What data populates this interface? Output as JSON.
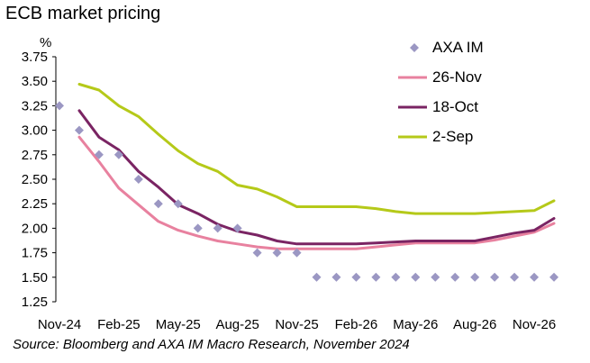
{
  "chart_data": {
    "type": "line",
    "title": "ECB market pricing",
    "ylabel": "%",
    "source": "Source: Bloomberg and AXA IM Macro Research, November 2024",
    "ylim": [
      1.25,
      3.75
    ],
    "yticks": [
      "3.75",
      "3.50",
      "3.25",
      "3.00",
      "2.75",
      "2.50",
      "2.25",
      "2.00",
      "1.75",
      "1.50",
      "1.25"
    ],
    "xlim": [
      0,
      25.5
    ],
    "xtick_labels": [
      {
        "label": "Nov-24",
        "x": 0
      },
      {
        "label": "Feb-25",
        "x": 3
      },
      {
        "label": "May-25",
        "x": 6
      },
      {
        "label": "Aug-25",
        "x": 9
      },
      {
        "label": "Nov-25",
        "x": 12
      },
      {
        "label": "Feb-26",
        "x": 15
      },
      {
        "label": "May-26",
        "x": 18
      },
      {
        "label": "Aug-26",
        "x": 21
      },
      {
        "label": "Nov-26",
        "x": 24
      }
    ],
    "legend_position": "top-right",
    "series": [
      {
        "name": "AXA IM",
        "kind": "scatter",
        "color": "#9b97c3",
        "x": [
          0,
          1,
          2,
          3,
          4,
          5,
          6,
          7,
          8,
          9,
          10,
          11,
          12,
          13,
          14,
          15,
          16,
          17,
          18,
          19,
          20,
          21,
          22,
          23,
          24,
          25
        ],
        "y": [
          3.25,
          3.0,
          2.75,
          2.75,
          2.5,
          2.25,
          2.25,
          2.0,
          2.0,
          2.0,
          1.75,
          1.75,
          1.75,
          1.5,
          1.5,
          1.5,
          1.5,
          1.5,
          1.5,
          1.5,
          1.5,
          1.5,
          1.5,
          1.5,
          1.5,
          1.5
        ]
      },
      {
        "name": "26-Nov",
        "kind": "line",
        "color": "#e8819f",
        "x": [
          1,
          2,
          3,
          4,
          5,
          6,
          7,
          8,
          9,
          10,
          11,
          12,
          13,
          14,
          15,
          16,
          17,
          18,
          19,
          20,
          21,
          22,
          23,
          24,
          25
        ],
        "y": [
          2.93,
          2.68,
          2.41,
          2.24,
          2.07,
          1.98,
          1.92,
          1.87,
          1.84,
          1.81,
          1.79,
          1.79,
          1.79,
          1.79,
          1.79,
          1.81,
          1.83,
          1.85,
          1.85,
          1.85,
          1.85,
          1.88,
          1.92,
          1.96,
          2.05
        ]
      },
      {
        "name": "18-Oct",
        "kind": "line",
        "color": "#7a2463",
        "x": [
          1,
          2,
          3,
          4,
          5,
          6,
          7,
          8,
          9,
          10,
          11,
          12,
          13,
          14,
          15,
          16,
          17,
          18,
          19,
          20,
          21,
          22,
          23,
          24,
          25
        ],
        "y": [
          3.2,
          2.93,
          2.8,
          2.58,
          2.42,
          2.24,
          2.15,
          2.04,
          1.97,
          1.93,
          1.87,
          1.84,
          1.84,
          1.84,
          1.84,
          1.85,
          1.86,
          1.87,
          1.87,
          1.87,
          1.87,
          1.91,
          1.95,
          1.98,
          2.1
        ]
      },
      {
        "name": "2-Sep",
        "kind": "line",
        "color": "#b5c919",
        "x": [
          1,
          2,
          3,
          4,
          5,
          6,
          7,
          8,
          9,
          10,
          11,
          12,
          13,
          14,
          15,
          16,
          17,
          18,
          19,
          20,
          21,
          22,
          23,
          24,
          25
        ],
        "y": [
          3.47,
          3.41,
          3.25,
          3.14,
          2.96,
          2.79,
          2.66,
          2.58,
          2.44,
          2.4,
          2.32,
          2.22,
          2.22,
          2.22,
          2.22,
          2.2,
          2.17,
          2.15,
          2.15,
          2.15,
          2.15,
          2.16,
          2.17,
          2.18,
          2.28
        ]
      }
    ]
  }
}
